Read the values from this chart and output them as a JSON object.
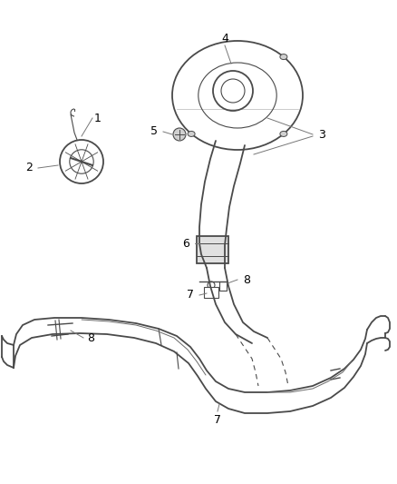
{
  "background_color": "#ffffff",
  "line_color": "#4a4a4a",
  "label_color": "#000000",
  "fig_width": 4.38,
  "fig_height": 5.33,
  "dpi": 100
}
